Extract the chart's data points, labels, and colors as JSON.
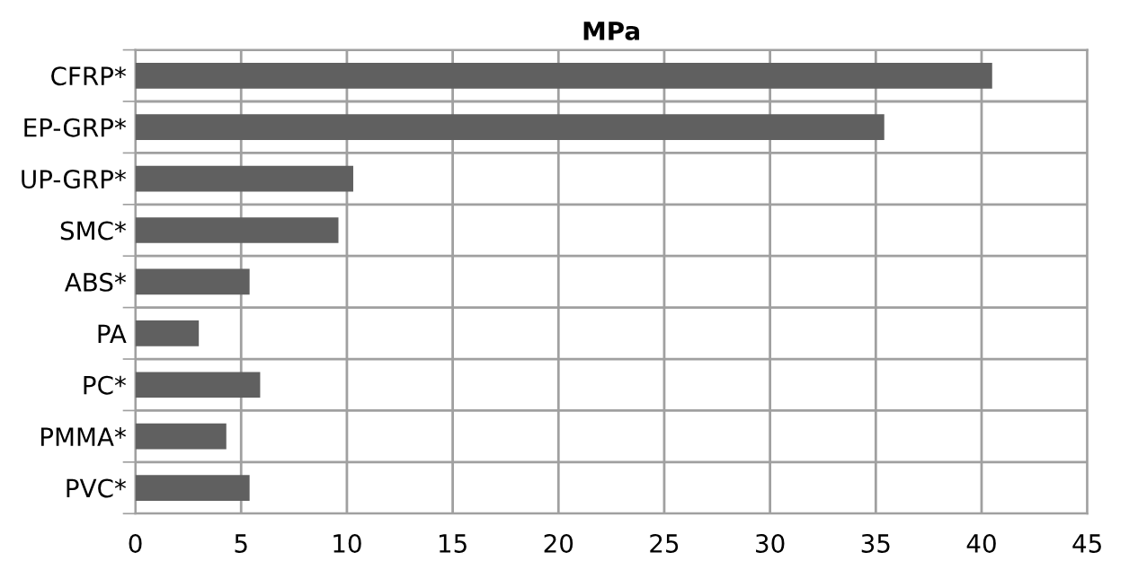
{
  "chart_data": {
    "type": "bar",
    "orientation": "horizontal",
    "title": "MPa",
    "categories": [
      "CFRP*",
      "EP-GRP*",
      "UP-GRP*",
      "SMC*",
      "ABS*",
      "PA",
      "PC*",
      "PMMA*",
      "PVC*"
    ],
    "values": [
      40.5,
      35.4,
      10.3,
      9.6,
      5.4,
      3.0,
      5.9,
      4.3,
      5.4
    ],
    "color": "#606060",
    "xlim": [
      0,
      45
    ],
    "xticks": [
      0,
      5,
      10,
      15,
      20,
      25,
      30,
      35,
      40,
      45
    ],
    "grid": true
  }
}
